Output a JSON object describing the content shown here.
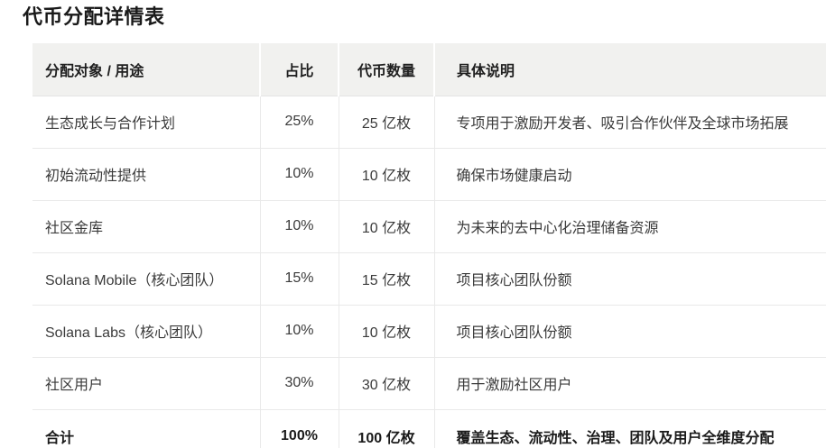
{
  "page": {
    "title": "代币分配详情表"
  },
  "table": {
    "columns": [
      "分配对象 / 用途",
      "占比",
      "代币数量",
      "具体说明"
    ],
    "rows": [
      {
        "name": "生态成长与合作计划",
        "percent": "25%",
        "amount": "25 亿枚",
        "description": "专项用于激励开发者、吸引合作伙伴及全球市场拓展"
      },
      {
        "name": "初始流动性提供",
        "percent": "10%",
        "amount": "10 亿枚",
        "description": "确保市场健康启动"
      },
      {
        "name": "社区金库",
        "percent": "10%",
        "amount": "10 亿枚",
        "description": "为未来的去中心化治理储备资源"
      },
      {
        "name": "Solana Mobile（核心团队）",
        "percent": "15%",
        "amount": "15 亿枚",
        "description": "项目核心团队份额"
      },
      {
        "name": "Solana Labs（核心团队）",
        "percent": "10%",
        "amount": "10 亿枚",
        "description": "项目核心团队份额"
      },
      {
        "name": "社区用户",
        "percent": "30%",
        "amount": "30 亿枚",
        "description": "用于激励社区用户"
      }
    ],
    "footer": {
      "name": "合计",
      "percent": "100%",
      "amount": "100 亿枚",
      "description": "覆盖生态、流动性、治理、团队及用户全维度分配"
    }
  },
  "colors": {
    "header_bg": "#f1f1ef",
    "border": "#e9e9e9",
    "body_text": "#3b3b3b",
    "heading_text": "#1a1a1a"
  }
}
